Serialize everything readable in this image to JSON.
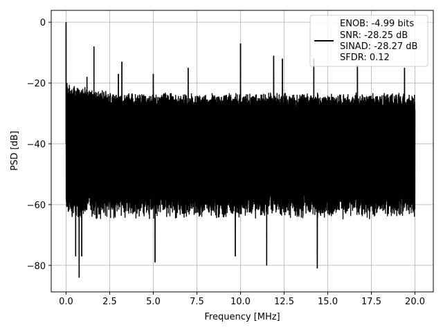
{
  "chart_data": {
    "type": "line",
    "title": "",
    "xlabel": "Frequency [MHz]",
    "ylabel": "PSD [dB]",
    "xlim": [
      -0.85,
      21.05
    ],
    "ylim": [
      -88.7,
      3.9
    ],
    "x_ticks": [
      0.0,
      2.5,
      5.0,
      7.5,
      10.0,
      12.5,
      15.0,
      17.5,
      20.0
    ],
    "x_tick_labels": [
      "0.0",
      "2.5",
      "5.0",
      "7.5",
      "10.0",
      "12.5",
      "15.0",
      "17.5",
      "20.0"
    ],
    "y_ticks": [
      0,
      -20,
      -40,
      -60,
      -80
    ],
    "y_tick_labels": [
      "0",
      "−20",
      "−40",
      "−60",
      "−80"
    ],
    "grid": true,
    "legend_position": "top-right",
    "line_color": "#000000",
    "series": [
      {
        "name": "ENOB: -4.99 bits\nSNR: -28.25 dB\nSINAD: -28.27 dB\nSFDR: 0.12",
        "legend_lines": [
          "ENOB: -4.99 bits",
          "SNR: -28.25 dB",
          "SINAD: -28.27 dB",
          "SFDR: 0.12"
        ],
        "x_range": [
          0.0,
          20.0
        ],
        "noise_floor_band_db": [
          -62,
          -25
        ],
        "peaks": [
          {
            "x": 0.0,
            "y": 0.0
          },
          {
            "x": 0.05,
            "y": -20
          },
          {
            "x": 0.15,
            "y": -31
          },
          {
            "x": 0.35,
            "y": -64
          },
          {
            "x": 0.55,
            "y": -77
          },
          {
            "x": 0.75,
            "y": -84
          },
          {
            "x": 0.9,
            "y": -77
          },
          {
            "x": 1.2,
            "y": -18
          },
          {
            "x": 1.6,
            "y": -8
          },
          {
            "x": 3.0,
            "y": -17
          },
          {
            "x": 3.2,
            "y": -13
          },
          {
            "x": 5.0,
            "y": -17
          },
          {
            "x": 5.1,
            "y": -79
          },
          {
            "x": 7.0,
            "y": -15
          },
          {
            "x": 9.7,
            "y": -77
          },
          {
            "x": 10.0,
            "y": -7
          },
          {
            "x": 11.5,
            "y": -80
          },
          {
            "x": 11.9,
            "y": -11
          },
          {
            "x": 12.4,
            "y": -12
          },
          {
            "x": 14.4,
            "y": -81
          },
          {
            "x": 14.2,
            "y": -12
          },
          {
            "x": 16.7,
            "y": -14
          },
          {
            "x": 19.4,
            "y": -15
          }
        ]
      }
    ]
  }
}
